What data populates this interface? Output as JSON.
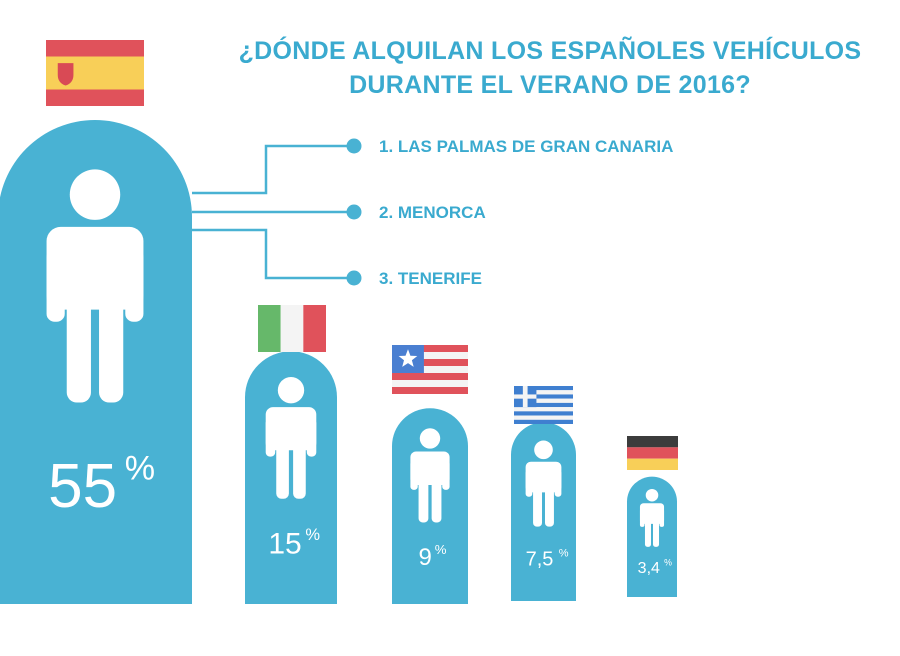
{
  "title": {
    "line1": "¿DÓNDE ALQUILAN LOS ESPAÑOLES VEHÍCULOS",
    "line2": "DURANTE EL VERANO DE 2016?"
  },
  "colors": {
    "accent": "#49b2d3",
    "text_accent": "#3aaacf",
    "figure": "#ffffff"
  },
  "destinations": [
    {
      "label": "1. LAS PALMAS DE GRAN CANARIA"
    },
    {
      "label": "2. MENORCA"
    },
    {
      "label": "3. TENERIFE"
    }
  ],
  "chart_data": {
    "type": "bar",
    "categories": [
      "España",
      "Italia",
      "Estados Unidos",
      "Grecia",
      "Alemania"
    ],
    "flag_icons": [
      "spain-flag-icon",
      "italy-flag-icon",
      "usa-flag-icon",
      "greece-flag-icon",
      "germany-flag-icon"
    ],
    "values": [
      55,
      15,
      9,
      7.5,
      3.4
    ],
    "value_labels": [
      "55",
      "15",
      "9",
      "7,5",
      "3,4"
    ],
    "unit": "%"
  }
}
